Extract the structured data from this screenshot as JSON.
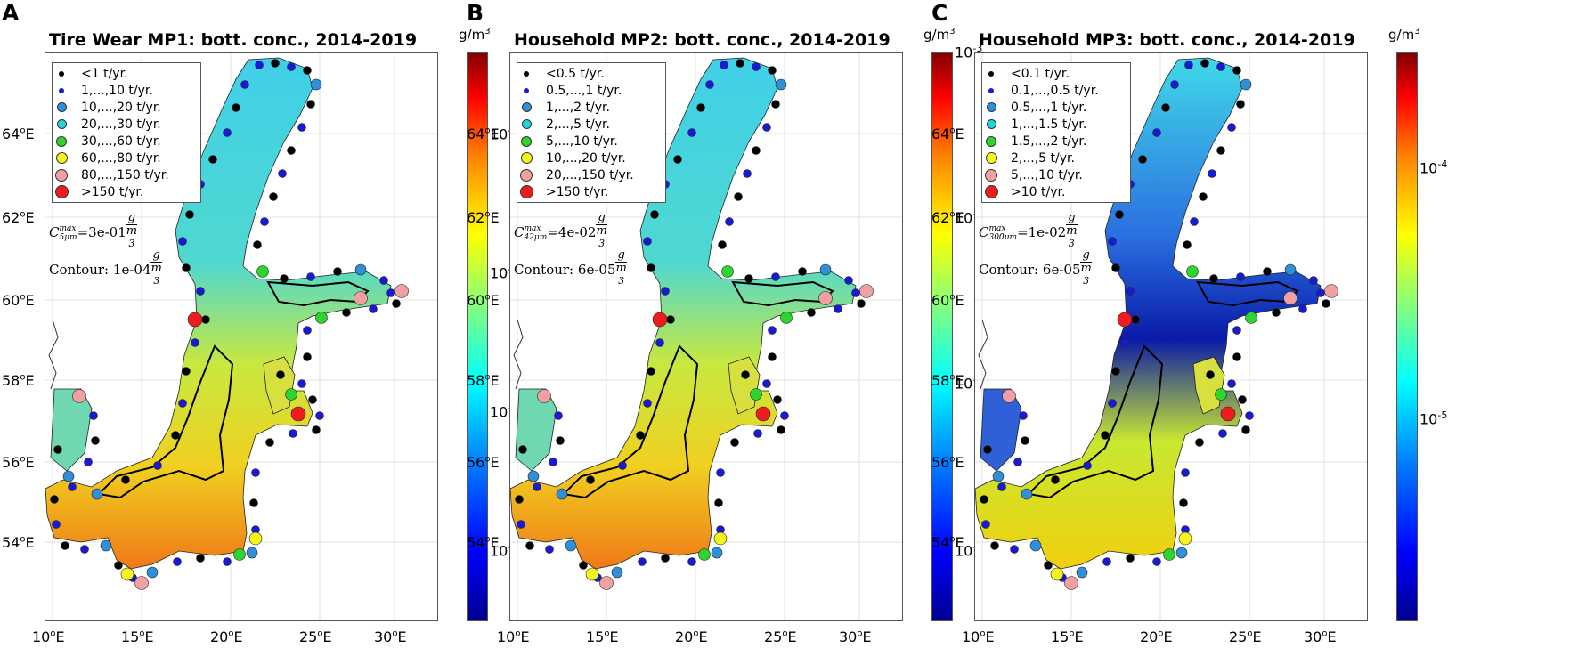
{
  "lat_ticks": [
    {
      "deg": "64",
      "unit": "o",
      "hemi": "E"
    },
    {
      "deg": "62",
      "unit": "o",
      "hemi": "E"
    },
    {
      "deg": "60",
      "unit": "o",
      "hemi": "E"
    },
    {
      "deg": "58",
      "unit": "o",
      "hemi": "E"
    },
    {
      "deg": "56",
      "unit": "o",
      "hemi": "E"
    },
    {
      "deg": "54",
      "unit": "o",
      "hemi": "E"
    }
  ],
  "lon_ticks": [
    {
      "deg": "10",
      "unit": "o",
      "hemi": "E"
    },
    {
      "deg": "15",
      "unit": "o",
      "hemi": "E"
    },
    {
      "deg": "20",
      "unit": "o",
      "hemi": "E"
    },
    {
      "deg": "25",
      "unit": "o",
      "hemi": "E"
    },
    {
      "deg": "30",
      "unit": "o",
      "hemi": "E"
    }
  ],
  "legend_marker_colors": [
    "#000000",
    "#1a1ad6",
    "#2f8fd8",
    "#22d3d8",
    "#2fd52f",
    "#f5f51e",
    "#f0a0a0",
    "#ee1c1c"
  ],
  "colormap": "jet",
  "colorbar_unit": {
    "base": "g/m",
    "exp": "3"
  },
  "panels": [
    {
      "letter": "A",
      "title": "Tire Wear MP1: bott. conc., 2014-2019",
      "legend": [
        "<1 t/yr.",
        "1,...,10 t/yr.",
        "10,...,20 t/yr.",
        "20,...,30 t/yr.",
        "30,...,60 t/yr.",
        "60,...,80 t/yr.",
        "80,...,150 t/yr.",
        ">150 t/yr."
      ],
      "cmax": {
        "symbol": "C",
        "sub": "5μm",
        "sup": "max",
        "value": "=3e-01",
        "num": "g",
        "den": "m",
        "den_sup": "3"
      },
      "contour": {
        "label": "Contour:",
        "value": "1e-04",
        "num": "g",
        "den": "m",
        "den_sup": "3"
      },
      "colorbar_ticks": [
        {
          "base": "10",
          "exp": "-3"
        },
        {
          "base": "10",
          "exp": "-4"
        },
        {
          "base": "10",
          "exp": "-5"
        },
        {
          "base": "10",
          "exp": "-6"
        }
      ]
    },
    {
      "letter": "B",
      "title": "Household MP2: bott. conc., 2014-2019",
      "legend": [
        "<0.5 t/yr.",
        "0.5,...,1 t/yr.",
        "1,...,2 t/yr.",
        "2,...,5 t/yr.",
        "5,...,10 t/yr.",
        "10,...,20 t/yr.",
        "20,...,150 t/yr.",
        ">150 t/yr."
      ],
      "cmax": {
        "symbol": "C",
        "sub": "42μm",
        "sup": "max",
        "value": "=4e-02",
        "num": "g",
        "den": "m",
        "den_sup": "3"
      },
      "contour": {
        "label": "Contour:",
        "value": "6e-05",
        "num": "g",
        "den": "m",
        "den_sup": "3"
      },
      "colorbar_ticks": [
        {
          "base": "10",
          "exp": "-3"
        },
        {
          "base": "10",
          "exp": "-4"
        },
        {
          "base": "10",
          "exp": "-5"
        },
        {
          "base": "10",
          "exp": "-6"
        }
      ]
    },
    {
      "letter": "C",
      "title": "Household MP3: bott. conc., 2014-2019",
      "legend": [
        "<0.1 t/yr.",
        "0.1,...,0.5 t/yr.",
        "0.5,...,1 t/yr.",
        "1,...,1.5 t/yr.",
        "1.5,...,2 t/yr.",
        "2,...,5 t/yr.",
        "5,...,10 t/yr.",
        ">10 t/yr."
      ],
      "cmax": {
        "symbol": "C",
        "sub": "300μm",
        "sup": "max",
        "value": "=1e-02",
        "num": "g",
        "den": "m",
        "den_sup": "3"
      },
      "contour": {
        "label": "Contour:",
        "value": "6e-05",
        "num": "g",
        "den": "m",
        "den_sup": "3"
      },
      "colorbar_ticks": [
        {
          "base": "10",
          "exp": "-4"
        },
        {
          "base": "10",
          "exp": "-5"
        }
      ]
    }
  ]
}
